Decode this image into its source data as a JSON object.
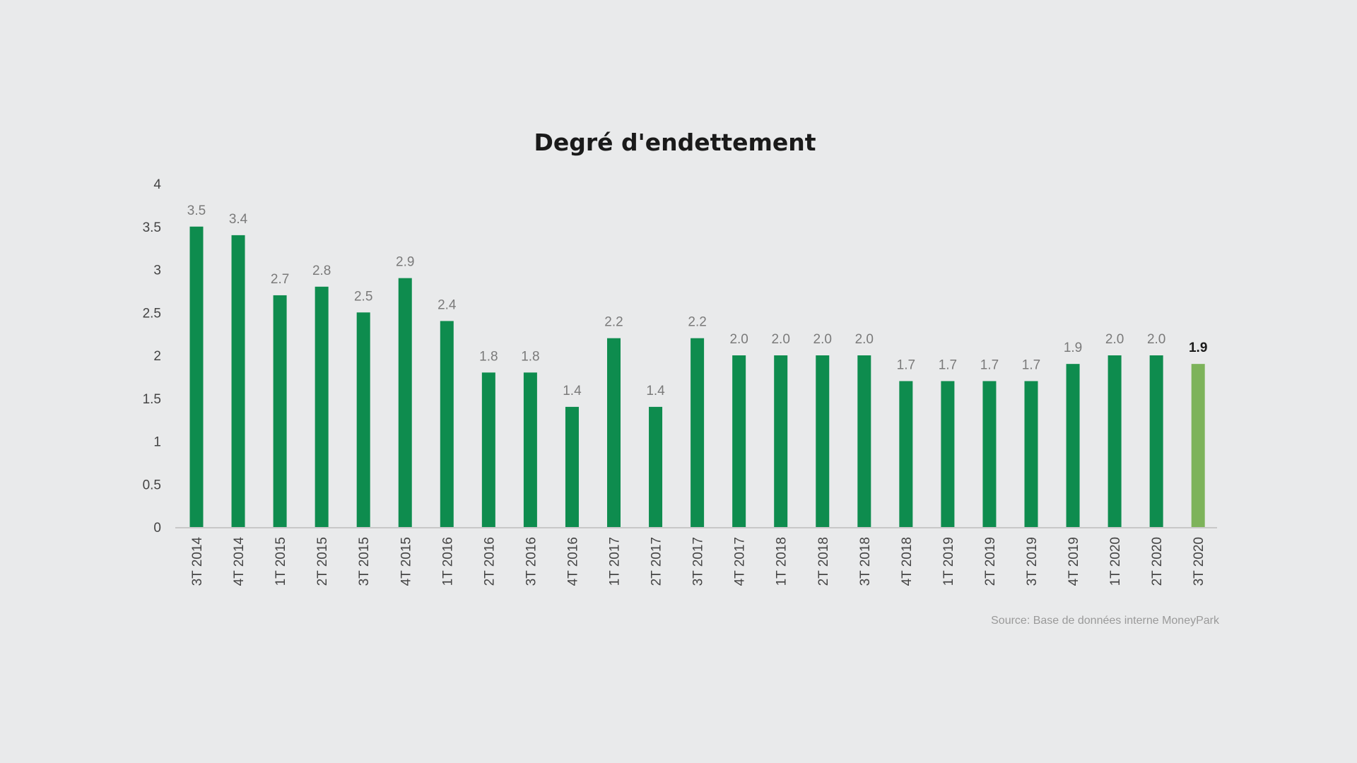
{
  "chart_data": {
    "type": "bar",
    "title": "Degré d'endettement",
    "xlabel": "",
    "ylabel": "",
    "ylim": [
      0,
      4
    ],
    "yticks": [
      "0",
      "0.5",
      "1",
      "1.5",
      "2",
      "2.5",
      "3",
      "3.5",
      "4"
    ],
    "grid": false,
    "categories": [
      "3T 2014",
      "4T 2014",
      "1T 2015",
      "2T 2015",
      "3T 2015",
      "4T 2015",
      "1T 2016",
      "2T 2016",
      "3T 2016",
      "4T 2016",
      "1T 2017",
      "2T 2017",
      "3T 2017",
      "4T 2017",
      "1T 2018",
      "2T 2018",
      "3T 2018",
      "4T 2018",
      "1T 2019",
      "2T 2019",
      "3T 2019",
      "4T 2019",
      "1T 2020",
      "2T 2020",
      "3T 2020"
    ],
    "values": [
      3.5,
      3.4,
      2.7,
      2.8,
      2.5,
      2.9,
      2.4,
      1.8,
      1.8,
      1.4,
      2.2,
      1.4,
      2.2,
      2.0,
      2.0,
      2.0,
      2.0,
      1.7,
      1.7,
      1.7,
      1.7,
      1.9,
      2.0,
      2.0,
      1.9
    ],
    "data_labels": [
      "3.5",
      "3.4",
      "2.7",
      "2.8",
      "2.5",
      "2.9",
      "2.4",
      "1.8",
      "1.8",
      "1.4",
      "2.2",
      "1.4",
      "2.2",
      "2.0",
      "2.0",
      "2.0",
      "2.0",
      "1.7",
      "1.7",
      "1.7",
      "1.7",
      "1.9",
      "2.0",
      "2.0",
      "1.9"
    ],
    "highlight_index": 24,
    "colors": {
      "bar": "#0e8c4e",
      "highlight_bar": "#7db35a"
    },
    "source": "Source: Base de données interne MoneyPark"
  }
}
